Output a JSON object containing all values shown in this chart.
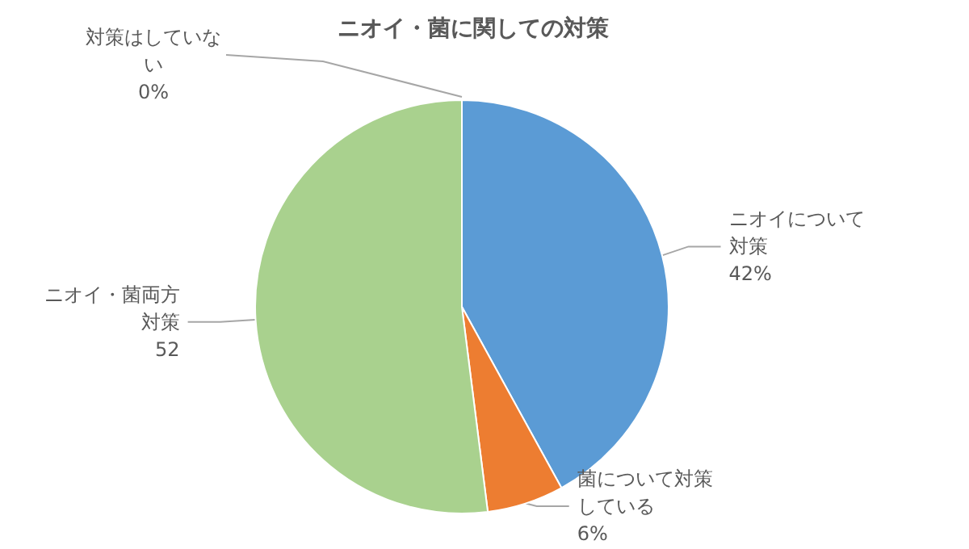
{
  "chart_data": {
    "type": "pie",
    "title": "ニオイ・菌に関しての対策",
    "categories": [
      "ニオイについて対策",
      "菌について対策している",
      "ニオイ・菌両方対策",
      "対策はしていない"
    ],
    "values": [
      42,
      6,
      52,
      0
    ],
    "value_labels": [
      "42%",
      "6%",
      "52",
      "0%"
    ],
    "colors": [
      "#5b9bd5",
      "#ed7d31",
      "#a9d18e",
      "#a5a5a5"
    ],
    "legend": false
  }
}
